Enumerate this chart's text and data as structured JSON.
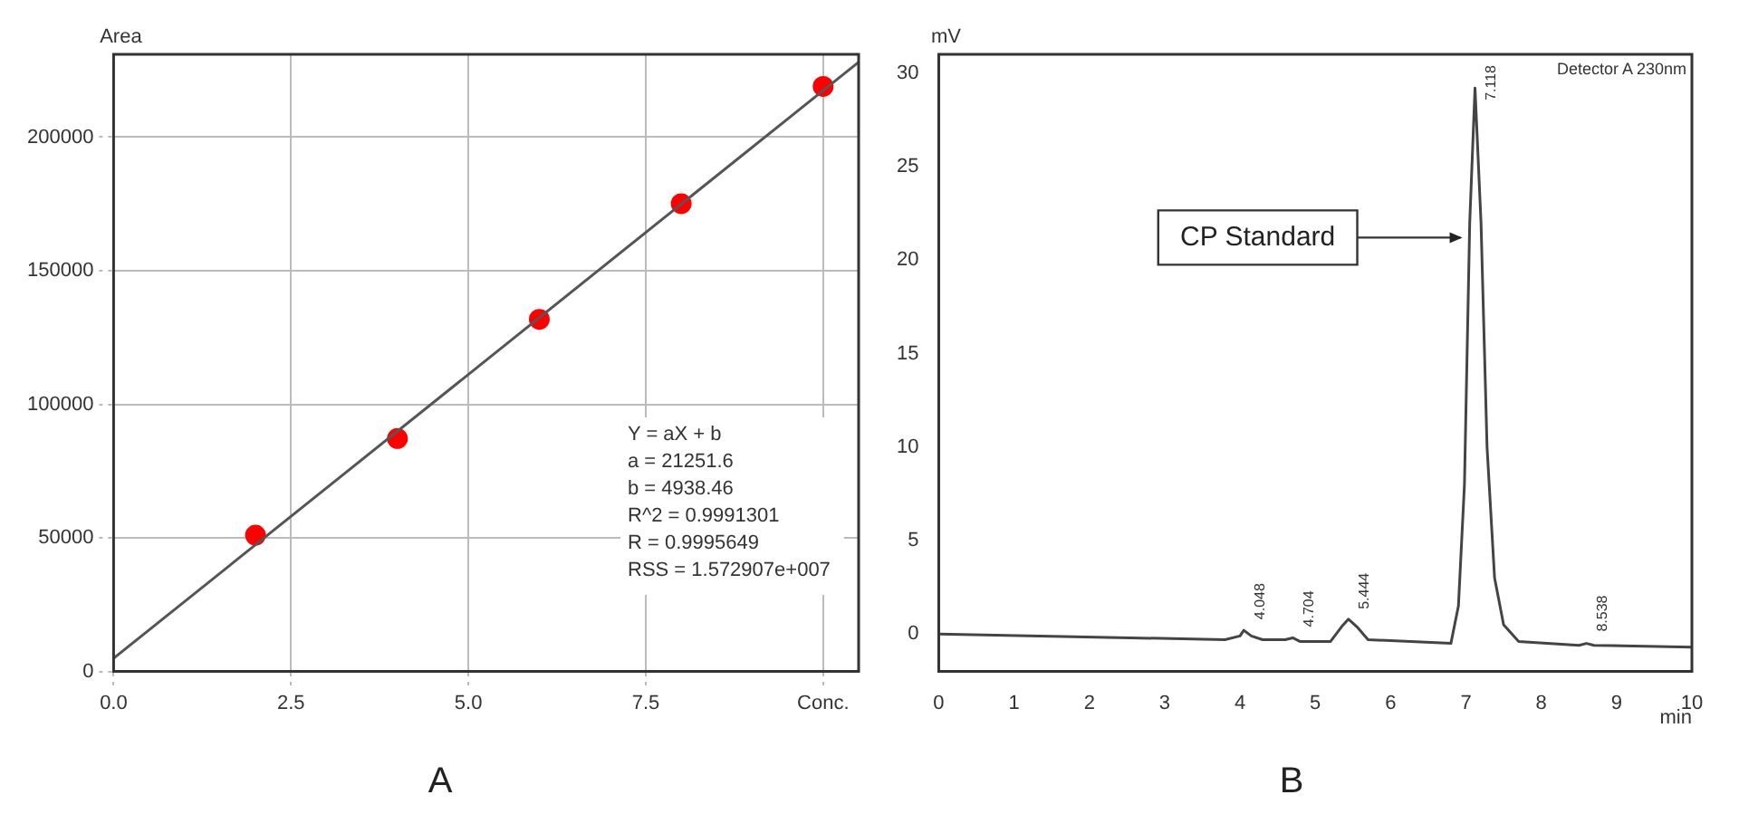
{
  "chart_data": [
    {
      "type": "scatter",
      "title": "A",
      "ylabel": "Area",
      "xlim": [
        0,
        10.5
      ],
      "ylim": [
        0,
        231000
      ],
      "xticks": [
        {
          "value": 0,
          "label": "0.0"
        },
        2.5,
        {
          "value": 5,
          "label": "5.0"
        },
        7.5,
        {
          "value": 10,
          "label": "Conc."
        }
      ],
      "yticks": [
        0,
        50000,
        100000,
        150000,
        200000
      ],
      "grid": true,
      "marker": "circle",
      "annotations": [
        "Y = aX + b",
        "a = 21251.6",
        "b = 4938.46",
        "R^2 = 0.9991301",
        "R = 0.9995649",
        "RSS = 1.572907e+007"
      ],
      "series": [
        {
          "type": "line",
          "color": "#555555",
          "x": [
            0,
            10.5
          ],
          "values": [
            4900,
            228100
          ],
          "marker": "none"
        },
        {
          "type": "scatter",
          "color": "#ff0000",
          "x": [
            2,
            4,
            6,
            8,
            10
          ],
          "values": [
            51000,
            87200,
            131800,
            175100,
            219000
          ]
        }
      ]
    },
    {
      "type": "line",
      "title": "B",
      "xlabel": "min",
      "ylabel": "mV",
      "xlim": [
        0,
        10
      ],
      "ylim": [
        -2,
        31
      ],
      "xticks": [
        0,
        1,
        2,
        3,
        4,
        5,
        6,
        7,
        8,
        9,
        10
      ],
      "yticks": [
        0,
        5,
        10,
        15,
        20,
        25,
        30
      ],
      "marker": "none",
      "annotations": [
        "Detector A 230nm",
        {
          "text": "CP Standard",
          "x": 7.0,
          "y": 21.2
        },
        {
          "text": "4.048",
          "x": 4.05,
          "y": 0.2
        },
        {
          "text": "4.704",
          "x": 4.7,
          "y": -0.2
        },
        {
          "text": "5.444",
          "x": 5.44,
          "y": 0.75
        },
        {
          "text": "7.118",
          "x": 7.12,
          "y": 29.2
        },
        {
          "text": "8.538",
          "x": 8.6,
          "y": -0.45
        }
      ],
      "series": [
        {
          "color": "#444444",
          "x": [
            0,
            3.8,
            4.0,
            4.05,
            4.15,
            4.3,
            4.6,
            4.7,
            4.8,
            5.2,
            5.35,
            5.44,
            5.55,
            5.7,
            6.8,
            6.9,
            6.98,
            7.05,
            7.12,
            7.2,
            7.28,
            7.38,
            7.5,
            7.7,
            8.5,
            8.6,
            8.7,
            10
          ],
          "values": [
            0,
            -0.3,
            -0.1,
            0.2,
            -0.1,
            -0.3,
            -0.3,
            -0.2,
            -0.4,
            -0.4,
            0.4,
            0.8,
            0.4,
            -0.3,
            -0.5,
            1.5,
            8,
            22,
            29.2,
            22,
            10,
            3,
            0.5,
            -0.4,
            -0.6,
            -0.5,
            -0.6,
            -0.7
          ]
        }
      ]
    }
  ]
}
